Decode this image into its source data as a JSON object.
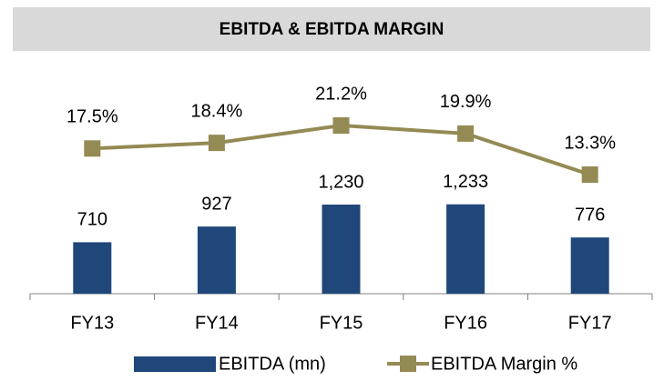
{
  "chart_data": {
    "type": "bar",
    "title": "EBITDA & EBITDA MARGIN",
    "categories": [
      "FY13",
      "FY14",
      "FY15",
      "FY16",
      "FY17"
    ],
    "series": [
      {
        "name": "EBITDA (mn)",
        "type": "bar",
        "color": "#1f477a",
        "values": [
          710,
          927,
          1230,
          1233,
          776
        ],
        "value_labels": [
          "710",
          "927",
          "1,230",
          "1,233",
          "776"
        ]
      },
      {
        "name": "EBITDA Margin %",
        "type": "line",
        "axis": "y2",
        "color": "#948a54",
        "values": [
          17.5,
          18.4,
          21.2,
          19.9,
          13.3
        ],
        "value_labels": [
          "17.5%",
          "18.4%",
          "21.2%",
          "19.9%",
          "13.3%"
        ]
      }
    ]
  }
}
